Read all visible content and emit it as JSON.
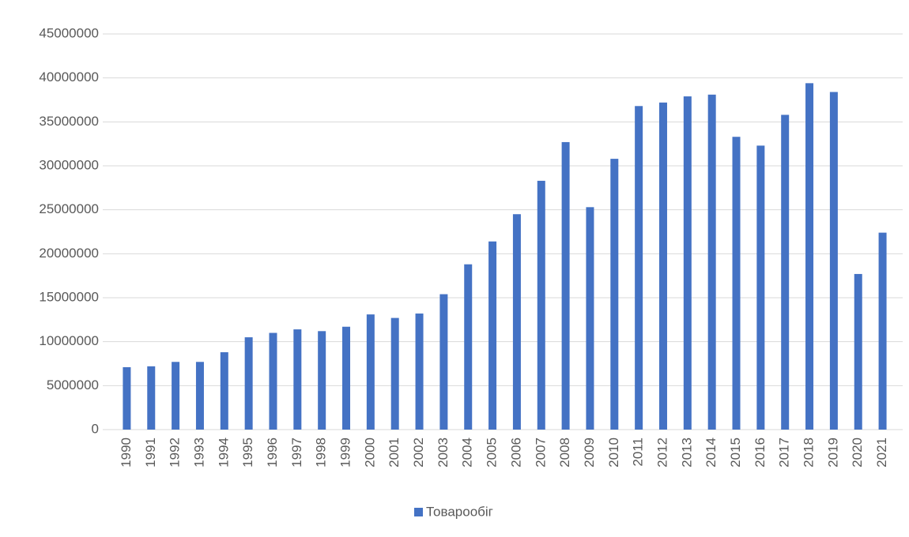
{
  "chart_data": {
    "type": "bar",
    "categories": [
      "1990",
      "1991",
      "1992",
      "1993",
      "1994",
      "1995",
      "1996",
      "1997",
      "1998",
      "1999",
      "2000",
      "2001",
      "2002",
      "2003",
      "2004",
      "2005",
      "2006",
      "2007",
      "2008",
      "2009",
      "2010",
      "2011",
      "2012",
      "2013",
      "2014",
      "2015",
      "2016",
      "2017",
      "2018",
      "2019",
      "2020",
      "2021"
    ],
    "series": [
      {
        "name": "Товарообіг",
        "color": "#4472c4",
        "values": [
          7100000,
          7200000,
          7700000,
          7700000,
          8800000,
          10500000,
          11000000,
          11400000,
          11200000,
          11700000,
          13100000,
          12700000,
          13200000,
          15400000,
          18800000,
          21400000,
          24500000,
          28300000,
          32700000,
          25300000,
          30800000,
          36800000,
          37200000,
          37900000,
          38100000,
          33300000,
          32300000,
          35800000,
          39400000,
          38400000,
          17700000,
          22400000
        ]
      }
    ],
    "ylim": [
      0,
      45000000
    ],
    "yticks": [
      0,
      5000000,
      10000000,
      15000000,
      20000000,
      25000000,
      30000000,
      35000000,
      40000000,
      45000000
    ],
    "grid": true,
    "legend": "bottom"
  }
}
